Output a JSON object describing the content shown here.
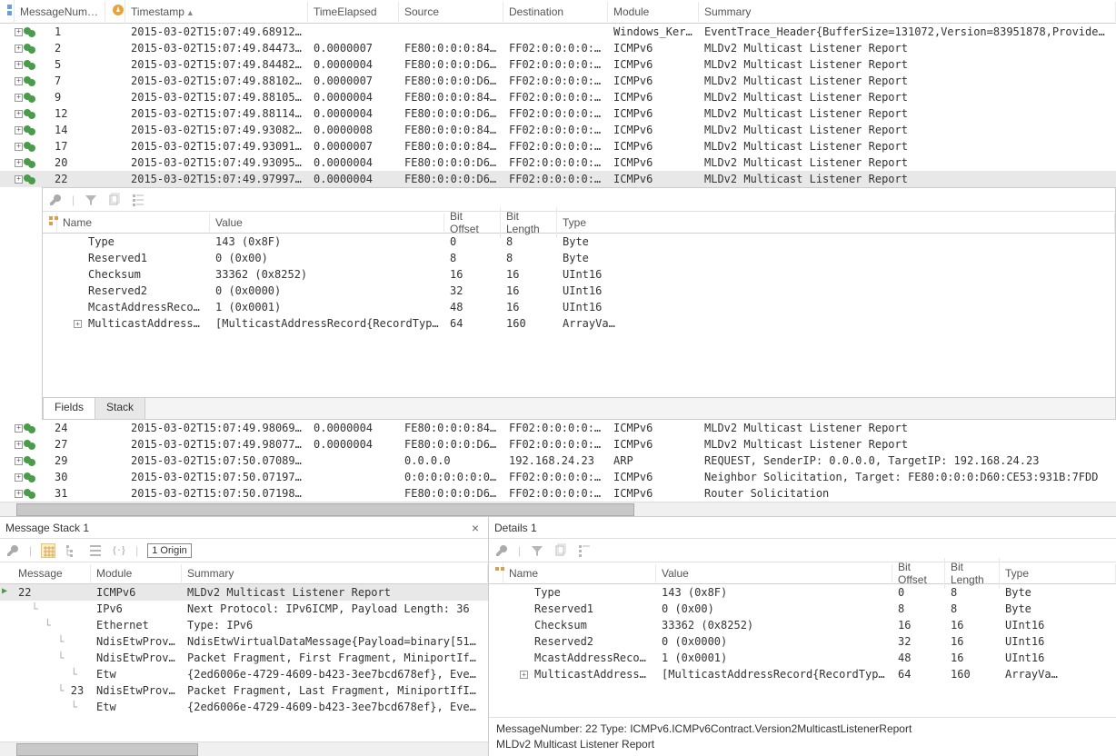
{
  "top_grid": {
    "columns": {
      "msgnum": "MessageNumber",
      "timestamp": "Timestamp",
      "timeelapsed": "TimeElapsed",
      "source": "Source",
      "destination": "Destination",
      "module": "Module",
      "summary": "Summary"
    },
    "rows": [
      {
        "n": "1",
        "ts": "2015-03-02T15:07:49.6891277",
        "te": "",
        "src": "",
        "dst": "",
        "mod": "Windows_Kerne…",
        "sum": "EventTrace_Header{BufferSize=131072,Version=83951878,ProviderVersi…"
      },
      {
        "n": "2",
        "ts": "2015-03-02T15:07:49.8447374",
        "te": "0.0000007",
        "src": "FE80:0:0:0:84CE…",
        "dst": "FF02:0:0:0:0:0:…",
        "mod": "ICMPv6",
        "sum": "MLDv2 Multicast Listener Report"
      },
      {
        "n": "5",
        "ts": "2015-03-02T15:07:49.8448286",
        "te": "0.0000004",
        "src": "FE80:0:0:0:D60:…",
        "dst": "FF02:0:0:0:0:0:…",
        "mod": "ICMPv6",
        "sum": "MLDv2 Multicast Listener Report"
      },
      {
        "n": "7",
        "ts": "2015-03-02T15:07:49.8810277",
        "te": "0.0000007",
        "src": "FE80:0:0:0:D60:…",
        "dst": "FF02:0:0:0:0:0:…",
        "mod": "ICMPv6",
        "sum": "MLDv2 Multicast Listener Report"
      },
      {
        "n": "9",
        "ts": "2015-03-02T15:07:49.8810573",
        "te": "0.0000004",
        "src": "FE80:0:0:0:84CE…",
        "dst": "FF02:0:0:0:0:0:…",
        "mod": "ICMPv6",
        "sum": "MLDv2 Multicast Listener Report"
      },
      {
        "n": "12",
        "ts": "2015-03-02T15:07:49.8811470",
        "te": "0.0000004",
        "src": "FE80:0:0:0:D60:…",
        "dst": "FF02:0:0:0:0:0:…",
        "mod": "ICMPv6",
        "sum": "MLDv2 Multicast Listener Report"
      },
      {
        "n": "14",
        "ts": "2015-03-02T15:07:49.9308250",
        "te": "0.0000008",
        "src": "FE80:0:0:0:84CE…",
        "dst": "FF02:0:0:0:0:0:…",
        "mod": "ICMPv6",
        "sum": "MLDv2 Multicast Listener Report"
      },
      {
        "n": "17",
        "ts": "2015-03-02T15:07:49.9309140",
        "te": "0.0000007",
        "src": "FE80:0:0:0:84CE…",
        "dst": "FF02:0:0:0:0:0:…",
        "mod": "ICMPv6",
        "sum": "MLDv2 Multicast Listener Report"
      },
      {
        "n": "20",
        "ts": "2015-03-02T15:07:49.9309546",
        "te": "0.0000004",
        "src": "FE80:0:0:0:D60:…",
        "dst": "FF02:0:0:0:0:0:…",
        "mod": "ICMPv6",
        "sum": "MLDv2 Multicast Listener Report"
      },
      {
        "n": "22",
        "ts": "2015-03-02T15:07:49.9799704",
        "te": "0.0000004",
        "src": "FE80:0:0:0:D60:…",
        "dst": "FF02:0:0:0:0:0:…",
        "mod": "ICMPv6",
        "sum": "MLDv2 Multicast Listener Report",
        "selected": true
      }
    ],
    "rows_after": [
      {
        "n": "24",
        "ts": "2015-03-02T15:07:49.9806938",
        "te": "0.0000004",
        "src": "FE80:0:0:0:84CE…",
        "dst": "FF02:0:0:0:0:0:…",
        "mod": "ICMPv6",
        "sum": "MLDv2 Multicast Listener Report"
      },
      {
        "n": "27",
        "ts": "2015-03-02T15:07:49.9807759",
        "te": "0.0000004",
        "src": "FE80:0:0:0:D60:…",
        "dst": "FF02:0:0:0:0:0:…",
        "mod": "ICMPv6",
        "sum": "MLDv2 Multicast Listener Report"
      },
      {
        "n": "29",
        "ts": "2015-03-02T15:07:50.0708944",
        "te": "",
        "src": "0.0.0.0",
        "dst": "192.168.24.23",
        "mod": "ARP",
        "sum": "REQUEST, SenderIP: 0.0.0.0, TargetIP: 192.168.24.23"
      },
      {
        "n": "30",
        "ts": "2015-03-02T15:07:50.0719782",
        "te": "",
        "src": "0:0:0:0:0:0:0:0",
        "dst": "FF02:0:0:0:0:1:…",
        "mod": "ICMPv6",
        "sum": "Neighbor Solicitation, Target: FE80:0:0:0:D60:CE53:931B:7FDD"
      },
      {
        "n": "31",
        "ts": "2015-03-02T15:07:50.0719888",
        "te": "",
        "src": "FE80:0:0:0:D60:…",
        "dst": "FF02:0:0:0:0:0:…",
        "mod": "ICMPv6",
        "sum": "Router Solicitation"
      }
    ]
  },
  "inline_detail": {
    "cols": {
      "name": "Name",
      "value": "Value",
      "bo": "Bit Offset",
      "bl": "Bit Length",
      "type": "Type"
    },
    "rows": [
      {
        "name": "Type",
        "val": "143 (0x8F)",
        "bo": "0",
        "bl": "8",
        "typ": "Byte"
      },
      {
        "name": "Reserved1",
        "val": "0 (0x00)",
        "bo": "8",
        "bl": "8",
        "typ": "Byte"
      },
      {
        "name": "Checksum",
        "val": "33362 (0x8252)",
        "bo": "16",
        "bl": "16",
        "typ": "UInt16"
      },
      {
        "name": "Reserved2",
        "val": "0 (0x0000)",
        "bo": "32",
        "bl": "16",
        "typ": "UInt16"
      },
      {
        "name": "McastAddressRecordsCou",
        "val": "1 (0x0001)",
        "bo": "48",
        "bl": "16",
        "typ": "UInt16"
      },
      {
        "name": "MulticastAddressRecord",
        "val": "[MulticastAddressRecord{RecordType=3,…",
        "bo": "64",
        "bl": "160",
        "typ": "ArrayVa…",
        "exp": true
      }
    ],
    "tabs": {
      "fields": "Fields",
      "stack": "Stack"
    }
  },
  "msg_stack": {
    "title": "Message Stack 1",
    "origin": "1 Origin",
    "cols": {
      "msg": "Message",
      "mod": "Module",
      "sum": "Summary"
    },
    "rows": [
      {
        "indent": 0,
        "n": "22",
        "mod": "ICMPv6",
        "sum": "MLDv2 Multicast Listener Report",
        "sel": true
      },
      {
        "indent": 1,
        "n": "",
        "mod": "IPv6",
        "sum": "Next Protocol: IPv6ICMP, Payload Length: 36"
      },
      {
        "indent": 2,
        "n": "",
        "mod": "Ethernet",
        "sum": "Type: IPv6"
      },
      {
        "indent": 3,
        "n": "",
        "mod": "NdisEtwProvid…",
        "sum": "NdisEtwVirtualDataMessage{Payload=binary[51,51,0…"
      },
      {
        "indent": 3,
        "n": "",
        "mod": "NdisEtwProvid…",
        "sum": "Packet Fragment, First Fragment, MiniportIfIndex…"
      },
      {
        "indent": 4,
        "n": "",
        "mod": "Etw",
        "sum": "{2ed6006e-4729-4609-b423-3ee7bcd678ef}, EventID:…"
      },
      {
        "indent": 3,
        "n": "23",
        "mod": "NdisEtwProvid…",
        "sum": "Packet Fragment, Last Fragment, MiniportIfIndex:…"
      },
      {
        "indent": 4,
        "n": "",
        "mod": "Etw",
        "sum": "{2ed6006e-4729-4609-b423-3ee7bcd678ef}, EventID:…"
      }
    ]
  },
  "details1": {
    "title": "Details 1",
    "cols": {
      "name": "Name",
      "value": "Value",
      "bo": "Bit Offset",
      "bl": "Bit Length",
      "type": "Type"
    },
    "rows": [
      {
        "name": "Type",
        "val": "143 (0x8F)",
        "bo": "0",
        "bl": "8",
        "typ": "Byte"
      },
      {
        "name": "Reserved1",
        "val": "0 (0x00)",
        "bo": "8",
        "bl": "8",
        "typ": "Byte"
      },
      {
        "name": "Checksum",
        "val": "33362 (0x8252)",
        "bo": "16",
        "bl": "16",
        "typ": "UInt16"
      },
      {
        "name": "Reserved2",
        "val": "0 (0x0000)",
        "bo": "32",
        "bl": "16",
        "typ": "UInt16"
      },
      {
        "name": "McastAddressRecordsCou",
        "val": "1 (0x0001)",
        "bo": "48",
        "bl": "16",
        "typ": "UInt16"
      },
      {
        "name": "MulticastAddressRecord",
        "val": "[MulticastAddressRecord{RecordType=3,…",
        "bo": "64",
        "bl": "160",
        "typ": "ArrayVa…",
        "exp": true
      }
    ],
    "footer1": "MessageNumber: 22 Type: ICMPv6.ICMPv6Contract.Version2MulticastListenerReport",
    "footer2": "MLDv2 Multicast Listener Report"
  },
  "colors": {
    "selected_bg": "#e8e8e8",
    "border": "#d0d0d0",
    "green": "#4a9c4a"
  }
}
